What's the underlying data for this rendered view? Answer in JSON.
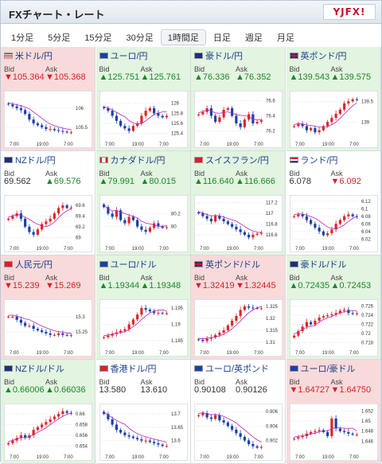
{
  "header": {
    "title": "FXチャート・レート",
    "logo": "YJFX!"
  },
  "tabs": [
    {
      "label": "1分足",
      "active": false
    },
    {
      "label": "5分足",
      "active": false
    },
    {
      "label": "15分足",
      "active": false
    },
    {
      "label": "30分足",
      "active": false
    },
    {
      "label": "1時間足",
      "active": true
    },
    {
      "label": "日足",
      "active": false
    },
    {
      "label": "週足",
      "active": false
    },
    {
      "label": "月足",
      "active": false
    }
  ],
  "labels": {
    "bid": "Bid",
    "ask": "Ask"
  },
  "time_labels": [
    "7:00",
    "19:00",
    "7:00"
  ],
  "colors": {
    "up": "#1a8a2a",
    "down": "#d8202a",
    "up_bg": "#e3f4e0",
    "down_bg": "#f9dada",
    "candle_up": "#e02424",
    "candle_down": "#1a3fa8",
    "ma": "#c020c0"
  },
  "pairs": [
    {
      "name": "米ドル/円",
      "flag": "us",
      "direction": "down",
      "bid": "▼105.364",
      "ask": "▼105.368",
      "chart_data": {
        "type": "candlestick",
        "x_ticks": [
          "7:00",
          "19:00",
          "7:00"
        ],
        "y_ticks": [
          106,
          105.5
        ],
        "y_range": [
          105.2,
          106.4
        ],
        "close_path": [
          106.1,
          106.05,
          106.0,
          105.95,
          105.85,
          105.7,
          105.6,
          105.55,
          105.5,
          105.45,
          105.45,
          105.42,
          105.4,
          105.38,
          105.36,
          105.36
        ]
      }
    },
    {
      "name": "ユーロ/円",
      "flag": "eu",
      "direction": "up",
      "bid": "▲125.751",
      "ask": "▲125.761",
      "chart_data": {
        "type": "candlestick",
        "x_ticks": [
          "7:00",
          "19:00",
          "7:00"
        ],
        "y_ticks": [
          126,
          125.8,
          125.6,
          125.4
        ],
        "y_range": [
          125.3,
          126.2
        ],
        "close_path": [
          125.9,
          125.85,
          125.75,
          125.65,
          125.55,
          125.5,
          125.45,
          125.55,
          125.6,
          125.75,
          125.85,
          125.9,
          125.8,
          125.75,
          125.72,
          125.75
        ]
      }
    },
    {
      "name": "豪ドル/円",
      "flag": "au",
      "direction": "up",
      "bid": "▲76.336",
      "ask": "▲76.352",
      "chart_data": {
        "type": "candlestick",
        "x_ticks": [
          "7:00",
          "19:00",
          "7:00"
        ],
        "y_ticks": [
          76.6,
          76.4,
          76.2
        ],
        "y_range": [
          76.1,
          76.7
        ],
        "close_path": [
          76.42,
          76.45,
          76.5,
          76.4,
          76.32,
          76.38,
          76.48,
          76.5,
          76.4,
          76.3,
          76.25,
          76.35,
          76.42,
          76.3,
          76.32,
          76.34
        ]
      }
    },
    {
      "name": "英ポンド/円",
      "flag": "uk",
      "direction": "up",
      "bid": "▲139.543",
      "ask": "▲139.575",
      "chart_data": {
        "type": "candlestick",
        "x_ticks": [
          "7:00",
          "19:00",
          "7:00"
        ],
        "y_ticks": [
          139.5,
          139
        ],
        "y_range": [
          138.6,
          139.7
        ],
        "close_path": [
          138.9,
          138.95,
          138.9,
          138.8,
          138.85,
          138.75,
          138.8,
          138.9,
          139.0,
          139.1,
          139.2,
          139.3,
          139.45,
          139.5,
          139.55,
          139.54
        ]
      }
    },
    {
      "name": "NZドル/円",
      "flag": "nz",
      "direction": "flat",
      "bid": "69.562",
      "ask": "▲69.576",
      "chart_data": {
        "type": "candlestick",
        "x_ticks": [
          "7:00",
          "19:00",
          "7:00"
        ],
        "y_ticks": [
          69.6,
          69.4,
          69.2,
          69
        ],
        "y_range": [
          68.9,
          69.75
        ],
        "close_path": [
          69.35,
          69.4,
          69.45,
          69.35,
          69.2,
          69.1,
          69.05,
          69.15,
          69.25,
          69.3,
          69.35,
          69.45,
          69.55,
          69.6,
          69.55,
          69.56
        ]
      }
    },
    {
      "name": "カナダドル/円",
      "flag": "ca",
      "direction": "up",
      "bid": "▲79.991",
      "ask": "▲80.015",
      "chart_data": {
        "type": "candlestick",
        "x_ticks": [
          "7:00",
          "19:00",
          "7:00"
        ],
        "y_ticks": [
          80.2,
          80
        ],
        "y_range": [
          79.75,
          80.45
        ],
        "close_path": [
          80.3,
          80.2,
          80.15,
          80.25,
          80.1,
          80.05,
          80.15,
          80.1,
          80.0,
          79.95,
          79.92,
          79.98,
          80.05,
          80.0,
          79.98,
          79.99
        ]
      }
    },
    {
      "name": "スイスフラン/円",
      "flag": "ch",
      "direction": "up",
      "bid": "▲116.640",
      "ask": "▲116.666",
      "chart_data": {
        "type": "candlestick",
        "x_ticks": [
          "7:00",
          "19:00",
          "7:00"
        ],
        "y_ticks": [
          117.2,
          117,
          116.8,
          116.6
        ],
        "y_range": [
          116.45,
          117.3
        ],
        "close_path": [
          117.0,
          116.95,
          116.9,
          116.85,
          116.95,
          116.9,
          116.85,
          116.8,
          116.75,
          116.7,
          116.65,
          116.6,
          116.55,
          116.6,
          116.62,
          116.64
        ]
      }
    },
    {
      "name": "ランド/円",
      "flag": "za",
      "direction": "flat",
      "bid": "6.078",
      "ask": "▼6.092",
      "chart_data": {
        "type": "candlestick",
        "x_ticks": [
          "7:00",
          "19:00",
          "7:00"
        ],
        "y_ticks": [
          6.12,
          6.1,
          6.08,
          6.06,
          6.04,
          6.02
        ],
        "y_range": [
          6.01,
          6.13
        ],
        "close_path": [
          6.08,
          6.085,
          6.08,
          6.07,
          6.06,
          6.05,
          6.04,
          6.03,
          6.035,
          6.045,
          6.06,
          6.07,
          6.08,
          6.085,
          6.08,
          6.078
        ]
      }
    },
    {
      "name": "人民元/円",
      "flag": "cn",
      "direction": "down",
      "bid": "▼15.239",
      "ask": "▼15.269",
      "chart_data": {
        "type": "candlestick",
        "x_ticks": [
          "7:00",
          "19:00",
          "7:00"
        ],
        "y_ticks": [
          15.3,
          15.25
        ],
        "y_range": [
          15.2,
          15.35
        ],
        "close_path": [
          15.3,
          15.3,
          15.29,
          15.28,
          15.27,
          15.27,
          15.26,
          15.255,
          15.25,
          15.245,
          15.24,
          15.24,
          15.245,
          15.24,
          15.238,
          15.239
        ]
      }
    },
    {
      "name": "ユーロ/ドル",
      "flag": "eu",
      "direction": "up",
      "bid": "▲1.19344",
      "ask": "▲1.19348",
      "chart_data": {
        "type": "candlestick",
        "x_ticks": [
          "7:00",
          "19:00",
          "7:00"
        ],
        "y_ticks": [
          1.195,
          1.19,
          1.185
        ],
        "y_range": [
          1.183,
          1.197
        ],
        "close_path": [
          1.186,
          1.1865,
          1.187,
          1.1875,
          1.188,
          1.1885,
          1.19,
          1.1915,
          1.193,
          1.195,
          1.1945,
          1.194,
          1.1935,
          1.1935,
          1.1934,
          1.1934
        ]
      }
    },
    {
      "name": "英ポンド/ドル",
      "flag": "uk",
      "direction": "down",
      "bid": "▼1.32419",
      "ask": "▼1.32445",
      "chart_data": {
        "type": "candlestick",
        "x_ticks": [
          "7:00",
          "19:00",
          "7:00"
        ],
        "y_ticks": [
          1.325,
          1.32,
          1.315,
          1.31
        ],
        "y_range": [
          1.308,
          1.327
        ],
        "close_path": [
          1.311,
          1.3105,
          1.3115,
          1.312,
          1.313,
          1.314,
          1.315,
          1.317,
          1.319,
          1.321,
          1.3235,
          1.325,
          1.3245,
          1.3243,
          1.3242,
          1.3242
        ]
      }
    },
    {
      "name": "豪ドル/ドル",
      "flag": "au",
      "direction": "up",
      "bid": "▲0.72435",
      "ask": "▲0.72453",
      "chart_data": {
        "type": "candlestick",
        "x_ticks": [
          "7:00",
          "19:00",
          "7:00"
        ],
        "y_ticks": [
          0.726,
          0.724,
          0.722,
          0.72,
          0.718
        ],
        "y_range": [
          0.717,
          0.727
        ],
        "close_path": [
          0.7195,
          0.7205,
          0.7215,
          0.7225,
          0.722,
          0.7228,
          0.7235,
          0.7238,
          0.724,
          0.7242,
          0.7245,
          0.725,
          0.7252,
          0.7245,
          0.7243,
          0.7244
        ]
      }
    },
    {
      "name": "NZドル/ドル",
      "flag": "nz",
      "direction": "up",
      "bid": "▲0.66006",
      "ask": "▲0.66036",
      "chart_data": {
        "type": "candlestick",
        "x_ticks": [
          "7:00",
          "19:00",
          "7:00"
        ],
        "y_ticks": [
          0.66,
          0.658,
          0.656,
          0.654
        ],
        "y_range": [
          0.653,
          0.6615
        ],
        "close_path": [
          0.6545,
          0.655,
          0.6555,
          0.656,
          0.6555,
          0.656,
          0.657,
          0.6575,
          0.658,
          0.6585,
          0.659,
          0.6595,
          0.66,
          0.6605,
          0.6602,
          0.6601
        ]
      }
    },
    {
      "name": "香港ドル/円",
      "flag": "hk",
      "direction": "flat",
      "bid": "13.580",
      "ask": "13.610",
      "chart_data": {
        "type": "candlestick",
        "x_ticks": [
          "7:00",
          "19:00",
          "7:00"
        ],
        "y_ticks": [
          13.7,
          13.65,
          13.6
        ],
        "y_range": [
          13.56,
          13.73
        ],
        "close_path": [
          13.7,
          13.68,
          13.66,
          13.64,
          13.63,
          13.62,
          13.615,
          13.61,
          13.605,
          13.6,
          13.6,
          13.595,
          13.59,
          13.585,
          13.58,
          13.58
        ]
      }
    },
    {
      "name": "ユーロ/英ポンド",
      "flag": "eu",
      "direction": "flat",
      "bid": "0.90108",
      "ask": "0.90126",
      "chart_data": {
        "type": "candlestick",
        "x_ticks": [
          "7:00",
          "19:00",
          "7:00"
        ],
        "y_ticks": [
          0.906,
          0.904,
          0.902
        ],
        "y_range": [
          0.9005,
          0.9068
        ],
        "close_path": [
          0.9055,
          0.9058,
          0.9052,
          0.905,
          0.9055,
          0.9048,
          0.9045,
          0.904,
          0.9035,
          0.903,
          0.9025,
          0.902,
          0.9015,
          0.9012,
          0.901,
          0.9011
        ]
      }
    },
    {
      "name": "ユーロ/豪ドル",
      "flag": "eu",
      "direction": "down",
      "bid": "▼1.64727",
      "ask": "▼1.64750",
      "chart_data": {
        "type": "candlestick",
        "x_ticks": [
          "7:00",
          "19:00",
          "7:00"
        ],
        "y_ticks": [
          1.652,
          1.65,
          1.648,
          1.646
        ],
        "y_range": [
          1.644,
          1.653
        ],
        "close_path": [
          1.6465,
          1.6468,
          1.647,
          1.6475,
          1.6478,
          1.648,
          1.6482,
          1.6478,
          1.647,
          1.6505,
          1.6485,
          1.648,
          1.6478,
          1.6475,
          1.6473,
          1.6473
        ]
      }
    }
  ]
}
